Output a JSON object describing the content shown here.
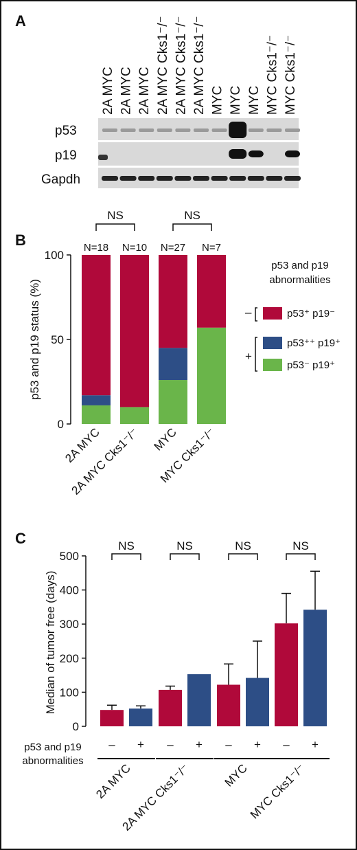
{
  "panels": {
    "a": "A",
    "b": "B",
    "c": "C"
  },
  "colors": {
    "red": "#b0093a",
    "blue": "#2d4e86",
    "green": "#6ab54a"
  },
  "blot": {
    "lanes": [
      "2A MYC",
      "2A MYC",
      "2A MYC",
      "2A MYC Cks1⁻/⁻",
      "2A MYC Cks1⁻/⁻",
      "2A MYC Cks1⁻/⁻",
      "MYC",
      "MYC",
      "MYC",
      "MYC Cks1⁻/⁻",
      "MYC Cks1⁻/⁻"
    ],
    "rows": [
      "p53",
      "p19",
      "Gapdh"
    ]
  },
  "chart_data": [
    {
      "type": "bar",
      "stacked": true,
      "ylabel": "p53 and p19 status (%)",
      "ylim": [
        0,
        100
      ],
      "yticks": [
        "0",
        "50",
        "100"
      ],
      "categories": [
        "2A MYC",
        "2A MYC Cks1⁻/⁻",
        "MYC",
        "MYC Cks1⁻/⁻"
      ],
      "n_labels": [
        "N=18",
        "N=10",
        "N=27",
        "N=7"
      ],
      "significance": [
        "NS",
        "NS"
      ],
      "series": [
        {
          "key": "green",
          "values": [
            11,
            10,
            26,
            57
          ]
        },
        {
          "key": "blue",
          "values": [
            6,
            0,
            19,
            0
          ]
        },
        {
          "key": "red",
          "values": [
            83,
            90,
            55,
            43
          ]
        }
      ],
      "legend": {
        "title_line1": "p53 and p19",
        "title_line2": "abnormalities",
        "minus_sign": "–",
        "plus_sign": "+",
        "items": [
          {
            "key": "red",
            "label": "p53⁺ p19⁻"
          },
          {
            "key": "blue",
            "label": "p53⁺⁺ p19⁺"
          },
          {
            "key": "green",
            "label": "p53⁻ p19⁺"
          }
        ]
      }
    },
    {
      "type": "bar",
      "ylabel": "Median of tumor free (days)",
      "ylim": [
        0,
        500
      ],
      "yticks": [
        "0",
        "100",
        "200",
        "300",
        "400",
        "500"
      ],
      "groups": [
        "2A MYC",
        "2A MYC Cks1⁻/⁻",
        "MYC",
        "MYC Cks1⁻/⁻"
      ],
      "significance": [
        "NS",
        "NS",
        "NS",
        "NS"
      ],
      "status_row_label_line1": "p53 and p19",
      "status_row_label_line2": "abnormalities",
      "status_signs": [
        "–",
        "+"
      ],
      "series": [
        {
          "key": "red",
          "values": [
            48,
            107,
            122,
            302
          ],
          "error_upper": [
            62,
            118,
            183,
            390
          ]
        },
        {
          "key": "blue",
          "values": [
            52,
            153,
            142,
            342
          ],
          "error_upper": [
            60,
            153,
            250,
            455
          ]
        }
      ]
    }
  ]
}
